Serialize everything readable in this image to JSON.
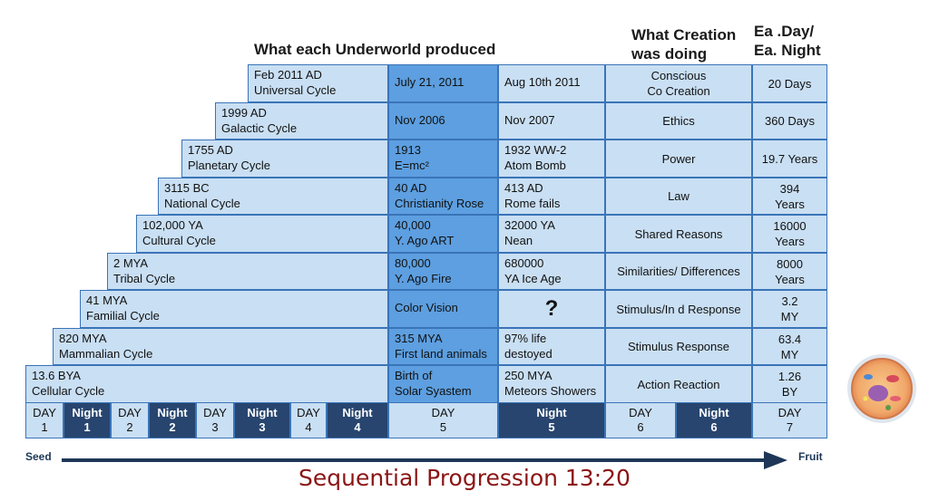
{
  "headers": {
    "produced": "What each Underworld produced",
    "creation": "What Creation\nwas doing",
    "each": "Ea .Day/\nEa. Night"
  },
  "rows": [
    {
      "cycle": [
        "Feb 2011 AD",
        "Universal Cycle"
      ],
      "event1": [
        "July 21, 2011"
      ],
      "event2": [
        "Aug 10th  2011"
      ],
      "creation": [
        "Conscious",
        "Co Creation"
      ],
      "duration": [
        "20 Days"
      ]
    },
    {
      "cycle": [
        "1999 AD",
        "Galactic Cycle"
      ],
      "event1": [
        "Nov 2006"
      ],
      "event2": [
        "Nov  2007"
      ],
      "creation": [
        "Ethics"
      ],
      "duration": [
        "360 Days"
      ]
    },
    {
      "cycle": [
        "1755 AD",
        "Planetary Cycle"
      ],
      "event1": [
        "1913",
        "E=mc²"
      ],
      "event2": [
        "1932 WW-2",
        "Atom Bomb"
      ],
      "creation": [
        "Power"
      ],
      "duration": [
        "19.7 Years"
      ]
    },
    {
      "cycle": [
        "3115 BC",
        "National Cycle"
      ],
      "event1": [
        "40 AD",
        "Christianity Rose"
      ],
      "event2": [
        "413 AD",
        "Rome fails"
      ],
      "creation": [
        "Law"
      ],
      "duration": [
        "394",
        "Years"
      ]
    },
    {
      "cycle": [
        "102,000 YA",
        "Cultural Cycle"
      ],
      "event1": [
        "40,000",
        "Y. Ago ART"
      ],
      "event2": [
        "32000 YA",
        "Nean"
      ],
      "creation": [
        "Shared Reasons"
      ],
      "duration": [
        "16000",
        "Years"
      ]
    },
    {
      "cycle": [
        "2 MYA",
        "Tribal Cycle"
      ],
      "event1": [
        "80,000",
        "Y. Ago Fire"
      ],
      "event2": [
        "680000",
        "YA Ice Age"
      ],
      "creation": [
        "Similarities/ Differences"
      ],
      "duration": [
        "8000",
        "Years"
      ]
    },
    {
      "cycle": [
        "41 MYA",
        "Familial Cycle"
      ],
      "event1": [
        "Color Vision"
      ],
      "event2": [
        "?"
      ],
      "creation": [
        "Stimulus/In d Response"
      ],
      "duration": [
        "3.2",
        "MY"
      ]
    },
    {
      "cycle": [
        "820 MYA",
        "Mammalian Cycle"
      ],
      "event1": [
        "315 MYA",
        "First land animals"
      ],
      "event2": [
        "97% life",
        "destoyed"
      ],
      "creation": [
        "Stimulus  Response"
      ],
      "duration": [
        "63.4",
        "MY"
      ]
    },
    {
      "cycle": [
        "13.6 BYA",
        "Cellular Cycle"
      ],
      "event1": [
        "Birth of",
        "Solar Syastem"
      ],
      "event2": [
        "250 MYA",
        "Meteors Showers"
      ],
      "creation": [
        "Action Reaction"
      ],
      "duration": [
        "1.26",
        "BY"
      ]
    }
  ],
  "days": [
    {
      "label": "DAY",
      "num": "1",
      "type": "day"
    },
    {
      "label": "Night",
      "num": "1",
      "type": "night"
    },
    {
      "label": "DAY",
      "num": "2",
      "type": "day"
    },
    {
      "label": "Night",
      "num": "2",
      "type": "night"
    },
    {
      "label": "DAY",
      "num": "3",
      "type": "day"
    },
    {
      "label": "Night",
      "num": "3",
      "type": "night"
    },
    {
      "label": "DAY",
      "num": "4",
      "type": "day"
    },
    {
      "label": "Night",
      "num": "4",
      "type": "night"
    },
    {
      "label": "DAY",
      "num": "5",
      "type": "day"
    },
    {
      "label": "Night",
      "num": "5",
      "type": "night"
    },
    {
      "label": "DAY",
      "num": "6",
      "type": "day"
    },
    {
      "label": "Night",
      "num": "6",
      "type": "night"
    },
    {
      "label": "DAY",
      "num": "7",
      "type": "day"
    }
  ],
  "arrow": {
    "start": "Seed",
    "end": "Fruit"
  },
  "title": "Sequential Progression 13:20",
  "colors": {
    "cell": "#c9dff3",
    "column_highlight": "#5d9fe0",
    "border": "#3a74b8",
    "night": "#27456f",
    "title": "#8b1515"
  },
  "icons": {
    "cell_image": "biological-cell-icon"
  }
}
